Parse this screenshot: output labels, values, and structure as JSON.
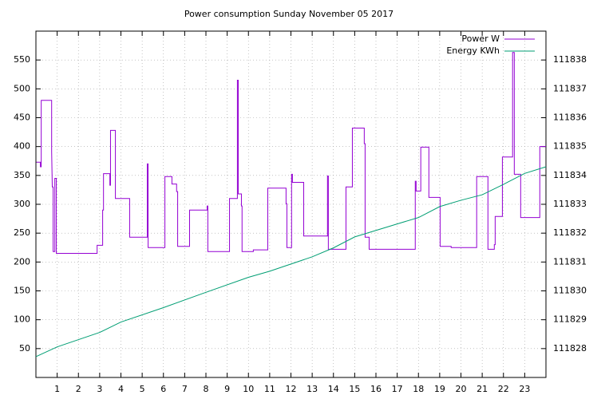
{
  "chart_data": {
    "type": "line",
    "title": "Power consumption Sunday November 05 2017",
    "xlim": [
      0,
      24
    ],
    "xticks": [
      1,
      2,
      3,
      4,
      5,
      6,
      7,
      8,
      9,
      10,
      11,
      12,
      13,
      14,
      15,
      16,
      17,
      18,
      19,
      20,
      21,
      22,
      23
    ],
    "ylim": [
      0,
      600
    ],
    "yticks": [
      50,
      100,
      150,
      200,
      250,
      300,
      350,
      400,
      450,
      500,
      550
    ],
    "y2lim": [
      111827,
      111839
    ],
    "y2ticks": [
      111828,
      111829,
      111830,
      111831,
      111832,
      111833,
      111834,
      111835,
      111836,
      111837,
      111838
    ],
    "grid": true,
    "legend": "top-right",
    "series": [
      {
        "name": "Power W",
        "color": "#9400d3",
        "x": [
          0.02,
          0.21,
          0.21,
          0.25,
          0.25,
          0.74,
          0.74,
          0.77,
          0.81,
          0.81,
          0.89,
          0.89,
          0.96,
          0.96,
          2.88,
          2.88,
          3.14,
          3.14,
          3.18,
          3.18,
          3.48,
          3.48,
          3.51,
          3.51,
          3.74,
          3.74,
          4.41,
          4.41,
          5.24,
          5.24,
          5.28,
          5.28,
          6.07,
          6.07,
          6.4,
          6.4,
          6.62,
          6.62,
          6.67,
          6.67,
          7.23,
          7.23,
          8.06,
          8.06,
          8.09,
          8.09,
          9.11,
          9.11,
          9.48,
          9.48,
          9.52,
          9.52,
          9.67,
          9.67,
          9.7,
          9.7,
          10.23,
          10.23,
          10.91,
          10.91,
          11.77,
          11.77,
          11.81,
          11.81,
          12.03,
          12.03,
          12.07,
          12.07,
          12.6,
          12.6,
          13.72,
          13.72,
          13.76,
          13.76,
          14.59,
          14.59,
          14.89,
          14.89,
          15.45,
          15.45,
          15.49,
          15.49,
          15.68,
          15.68,
          17.85,
          17.85,
          17.89,
          17.89,
          18.11,
          18.11,
          18.49,
          18.49,
          19.02,
          19.02,
          19.54,
          19.54,
          20.74,
          20.74,
          21.27,
          21.27,
          21.57,
          21.57,
          21.61,
          21.61,
          21.95,
          21.95,
          22.43,
          22.43,
          22.51,
          22.51,
          22.81,
          22.81,
          23.71,
          23.71,
          24
        ],
        "values": [
          373,
          373,
          365,
          365,
          480,
          480,
          391,
          330,
          330,
          218,
          218,
          345,
          345,
          215,
          215,
          229,
          229,
          290,
          290,
          353,
          353,
          333,
          333,
          428,
          428,
          310,
          310,
          243,
          243,
          370,
          370,
          225,
          225,
          348,
          348,
          335,
          335,
          322,
          322,
          227,
          227,
          290,
          290,
          297,
          297,
          218,
          218,
          310,
          310,
          515,
          515,
          318,
          318,
          297,
          297,
          218,
          218,
          221,
          221,
          328,
          328,
          301,
          301,
          225,
          225,
          352,
          352,
          338,
          338,
          245,
          245,
          349,
          349,
          222,
          222,
          330,
          330,
          432,
          432,
          405,
          405,
          243,
          243,
          222,
          222,
          340,
          340,
          323,
          323,
          399,
          399,
          312,
          312,
          227,
          227,
          225,
          225,
          348,
          348,
          222,
          222,
          230,
          230,
          279,
          279,
          382,
          382,
          563,
          563,
          352,
          352,
          277,
          277,
          400,
          400
        ]
      },
      {
        "name": "Energy KWh",
        "color": "#009e73",
        "axis": "y2",
        "x": [
          0,
          1,
          3,
          4,
          6,
          8,
          10,
          11,
          13,
          14,
          15,
          17,
          18,
          19,
          20,
          21,
          22,
          23,
          24
        ],
        "values": [
          111827.72,
          111828.06,
          111828.56,
          111828.92,
          111829.42,
          111829.95,
          111830.47,
          111830.68,
          111831.18,
          111831.49,
          111831.87,
          111832.32,
          111832.54,
          111832.92,
          111833.14,
          111833.33,
          111833.69,
          111834.07,
          111834.3
        ]
      }
    ]
  }
}
